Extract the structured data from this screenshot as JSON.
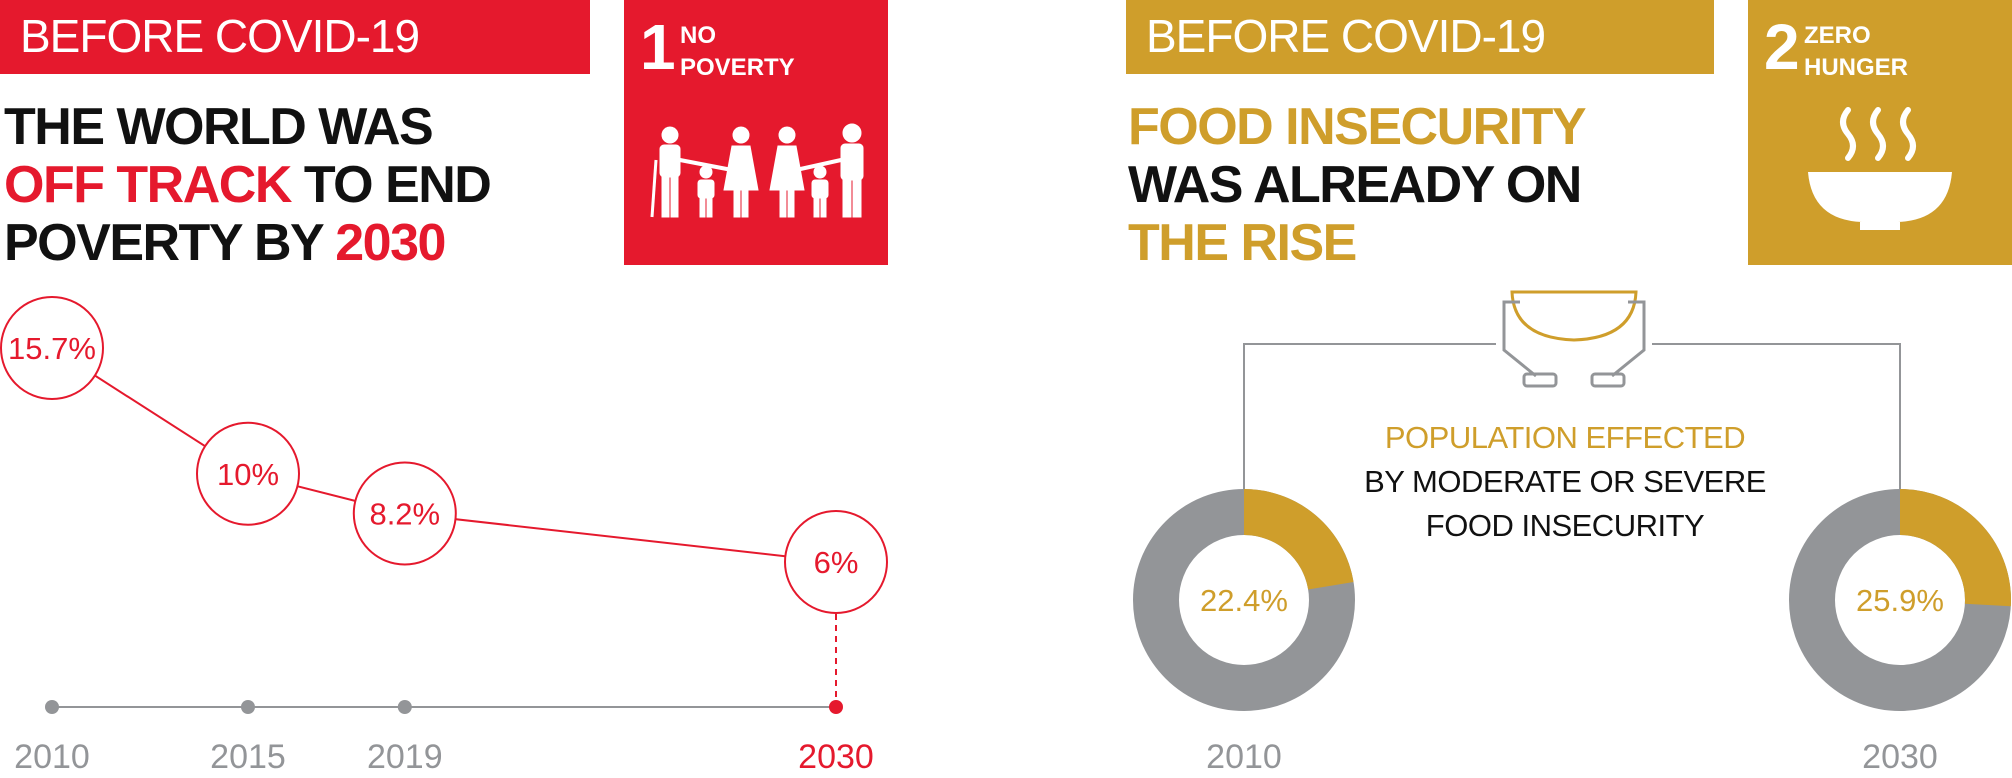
{
  "left": {
    "banner": "BEFORE COVID-19",
    "sdg": {
      "number": "1",
      "title_line1": "NO",
      "title_line2": "POVERTY",
      "icon": "family-icon"
    },
    "headline": {
      "line1": "THE WORLD WAS",
      "line2_highlight": "OFF TRACK",
      "line2_rest": " TO END",
      "line3_rest": "POVERTY BY ",
      "line3_highlight": "2030"
    }
  },
  "right": {
    "banner": "BEFORE COVID-19",
    "sdg": {
      "number": "2",
      "title_line1": "ZERO",
      "title_line2": "HUNGER",
      "icon": "bowl-icon"
    },
    "headline": {
      "line1_highlight": "FOOD INSECURITY",
      "line2": "WAS ALREADY ON",
      "line3_highlight": "THE RISE"
    },
    "center": {
      "line1": "POPULATION EFFECTED",
      "line2": "BY MODERATE OR SEVERE",
      "line3": "FOOD INSECURITY"
    }
  },
  "colors": {
    "red": "#e5192d",
    "gold": "#cf9e2b",
    "gray": "#939598"
  },
  "chart_data": [
    {
      "type": "line",
      "x": [
        2010,
        2015,
        2019,
        2030
      ],
      "tick_labels": [
        "2010",
        "2015",
        "2019",
        "2030"
      ],
      "values": [
        15.7,
        10,
        8.2,
        6
      ],
      "labels": [
        "15.7%",
        "10%",
        "8.2%",
        "6%"
      ],
      "highlight_last": true
    },
    {
      "type": "pie",
      "donuts": [
        {
          "year": "2010",
          "value": 22.4,
          "label": "22.4%"
        },
        {
          "year": "2030",
          "value": 25.9,
          "label": "25.9%"
        }
      ]
    }
  ]
}
